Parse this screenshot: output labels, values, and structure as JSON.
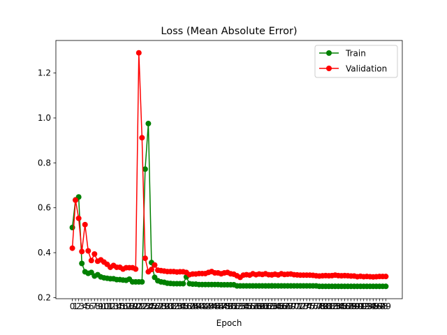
{
  "chart_data": {
    "type": "line",
    "title": "Loss (Mean Absolute Error)",
    "xlabel": "Epoch",
    "ylabel": "",
    "x": [
      0,
      1,
      2,
      3,
      4,
      5,
      6,
      7,
      8,
      9,
      10,
      11,
      12,
      13,
      14,
      15,
      16,
      17,
      18,
      19,
      20,
      21,
      22,
      23,
      24,
      25,
      26,
      27,
      28,
      29,
      30,
      31,
      32,
      33,
      34,
      35,
      36,
      37,
      38,
      39,
      40,
      41,
      42,
      43,
      44,
      45,
      46,
      47,
      48,
      49,
      50,
      51,
      52,
      53,
      54,
      55,
      56,
      57,
      58,
      59,
      60,
      61,
      62,
      63,
      63,
      64,
      65,
      66,
      67,
      68,
      69,
      70,
      71,
      72,
      73,
      74,
      75,
      76,
      77,
      78,
      79,
      80,
      81,
      82,
      83,
      84,
      85,
      86,
      87,
      88,
      89,
      90,
      91,
      92,
      93,
      94,
      95,
      96,
      97,
      98,
      99
    ],
    "xlim": [
      -5.2,
      104.2
    ],
    "ylim": [
      0.195,
      1.345
    ],
    "yticks": [
      0.2,
      0.4,
      0.6,
      0.8,
      1.0,
      1.2
    ],
    "ytick_labels": [
      "0.2",
      "0.4",
      "0.6",
      "0.8",
      "1.0",
      "1.2"
    ],
    "grid": false,
    "legend": "top-right",
    "series": [
      {
        "name": "Train",
        "color": "#008000",
        "marker": "circle",
        "values": [
          0.512,
          0.635,
          0.648,
          0.352,
          0.315,
          0.308,
          0.312,
          0.296,
          0.302,
          0.292,
          0.288,
          0.286,
          0.284,
          0.284,
          0.28,
          0.28,
          0.278,
          0.277,
          0.282,
          0.27,
          0.27,
          0.27,
          0.27,
          0.772,
          0.975,
          0.356,
          0.29,
          0.275,
          0.27,
          0.268,
          0.264,
          0.263,
          0.262,
          0.262,
          0.262,
          0.262,
          0.292,
          0.262,
          0.26,
          0.26,
          0.258,
          0.258,
          0.258,
          0.258,
          0.258,
          0.258,
          0.258,
          0.257,
          0.257,
          0.257,
          0.257,
          0.257,
          0.252,
          0.252,
          0.252,
          0.252,
          0.252,
          0.252,
          0.252,
          0.252,
          0.252,
          0.252,
          0.252,
          0.252,
          0.252,
          0.252,
          0.252,
          0.252,
          0.252,
          0.252,
          0.252,
          0.252,
          0.252,
          0.252,
          0.252,
          0.252,
          0.252,
          0.252,
          0.252,
          0.25,
          0.25,
          0.25,
          0.25,
          0.25,
          0.25,
          0.25,
          0.25,
          0.25,
          0.25,
          0.25,
          0.25,
          0.25,
          0.25,
          0.25,
          0.25,
          0.25,
          0.25,
          0.25,
          0.25,
          0.25,
          0.25
        ]
      },
      {
        "name": "Validation",
        "color": "#ff0000",
        "marker": "circle",
        "values": [
          0.42,
          0.634,
          0.553,
          0.405,
          0.525,
          0.408,
          0.365,
          0.394,
          0.362,
          0.368,
          0.358,
          0.348,
          0.335,
          0.343,
          0.335,
          0.335,
          0.327,
          0.333,
          0.333,
          0.333,
          0.327,
          1.29,
          0.912,
          0.375,
          0.315,
          0.325,
          0.345,
          0.322,
          0.32,
          0.318,
          0.316,
          0.316,
          0.316,
          0.314,
          0.315,
          0.315,
          0.312,
          0.302,
          0.305,
          0.305,
          0.307,
          0.307,
          0.307,
          0.312,
          0.316,
          0.31,
          0.31,
          0.306,
          0.31,
          0.312,
          0.306,
          0.304,
          0.297,
          0.29,
          0.3,
          0.302,
          0.3,
          0.306,
          0.302,
          0.305,
          0.303,
          0.306,
          0.302,
          0.301,
          0.302,
          0.304,
          0.301,
          0.306,
          0.303,
          0.304,
          0.305,
          0.302,
          0.301,
          0.3,
          0.3,
          0.3,
          0.3,
          0.299,
          0.297,
          0.296,
          0.297,
          0.298,
          0.297,
          0.298,
          0.3,
          0.298,
          0.297,
          0.298,
          0.297,
          0.296,
          0.296,
          0.293,
          0.295,
          0.293,
          0.294,
          0.293,
          0.292,
          0.293,
          0.294,
          0.294,
          0.294
        ]
      }
    ]
  }
}
